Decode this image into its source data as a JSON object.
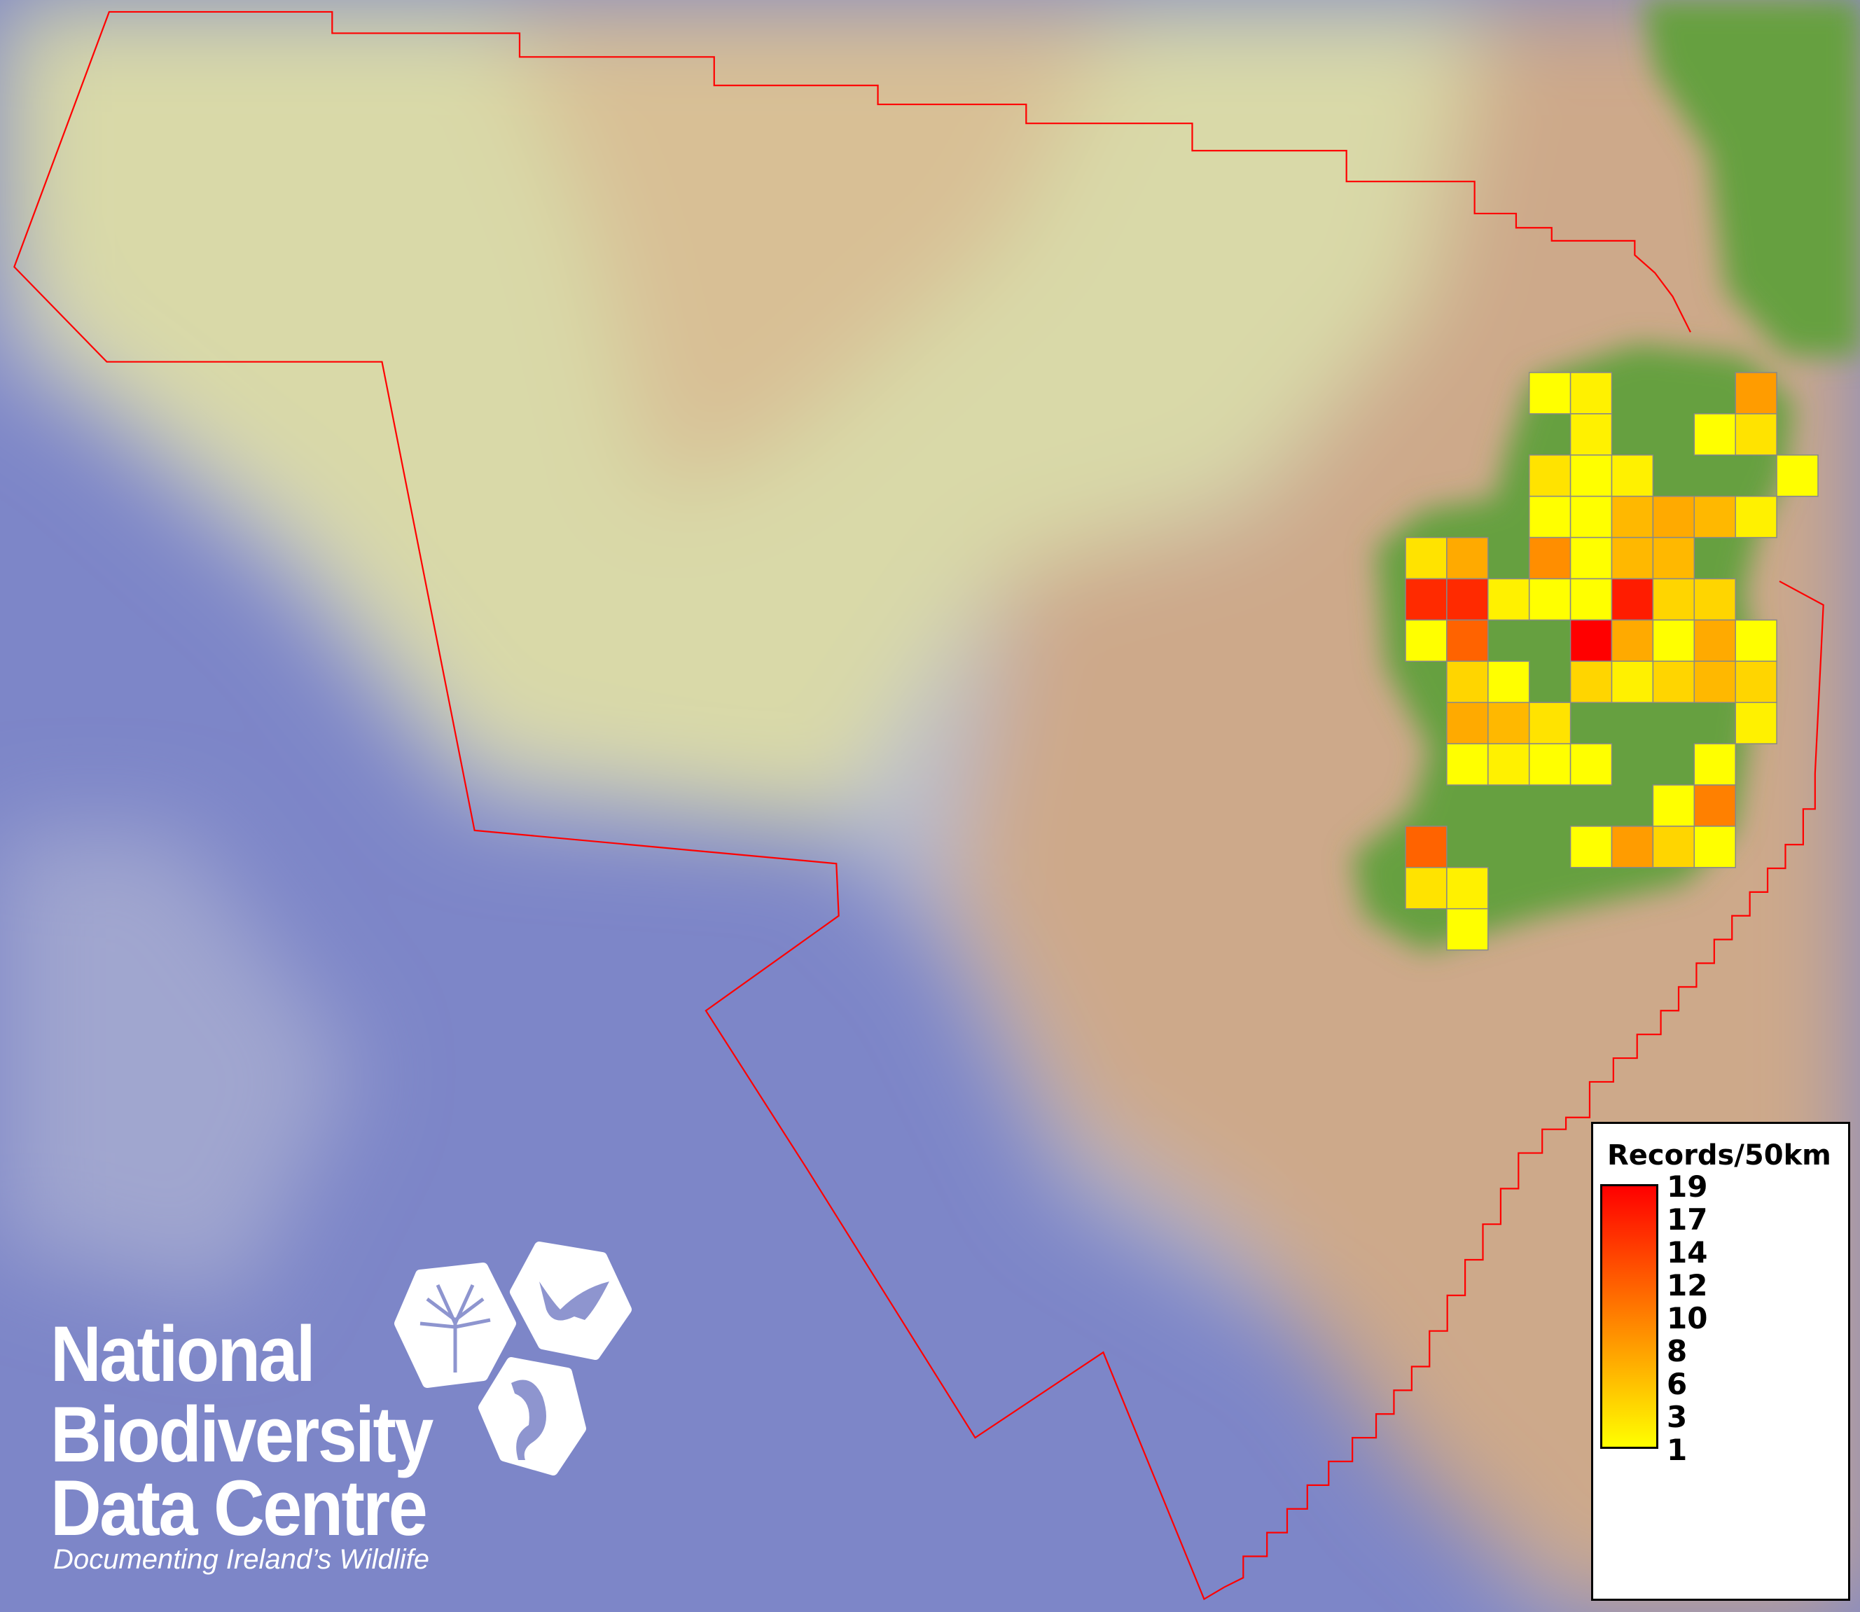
{
  "legend": {
    "title": "Records/50km",
    "ticks": [
      "19",
      "17",
      "14",
      "12",
      "10",
      "8",
      "6",
      "3",
      "1"
    ],
    "scale_min": 1,
    "scale_max": 19,
    "color_low": "#ffff00",
    "color_high": "#ff0000"
  },
  "logo": {
    "line1": "National",
    "line2": "Biodiversity",
    "line3": "Data Centre",
    "tagline": "Documenting Ireland’s Wildlife",
    "icons": [
      "tree-icon",
      "butterfly-icon",
      "seahorse-icon"
    ]
  },
  "colors": {
    "ocean": "#7d86c8",
    "shelf": "#d9d9a8",
    "seabed_tan": "#cda98a",
    "land": "#66a040",
    "boundary": "#ff0000"
  },
  "grid_cells": [
    {
      "row": 0,
      "col": 3,
      "value": 1
    },
    {
      "row": 0,
      "col": 4,
      "value": 2
    },
    {
      "row": 0,
      "col": 8,
      "value": 8
    },
    {
      "row": 1,
      "col": 4,
      "value": 2
    },
    {
      "row": 1,
      "col": 7,
      "value": 1
    },
    {
      "row": 1,
      "col": 8,
      "value": 3
    },
    {
      "row": 2,
      "col": 3,
      "value": 3
    },
    {
      "row": 2,
      "col": 4,
      "value": 1
    },
    {
      "row": 2,
      "col": 5,
      "value": 2
    },
    {
      "row": 2,
      "col": 9,
      "value": 1
    },
    {
      "row": 3,
      "col": 3,
      "value": 1
    },
    {
      "row": 3,
      "col": 4,
      "value": 1
    },
    {
      "row": 3,
      "col": 5,
      "value": 6
    },
    {
      "row": 3,
      "col": 6,
      "value": 7
    },
    {
      "row": 3,
      "col": 7,
      "value": 6
    },
    {
      "row": 3,
      "col": 8,
      "value": 2
    },
    {
      "row": 4,
      "col": 0,
      "value": 3
    },
    {
      "row": 4,
      "col": 1,
      "value": 7
    },
    {
      "row": 4,
      "col": 3,
      "value": 9
    },
    {
      "row": 4,
      "col": 4,
      "value": 1
    },
    {
      "row": 4,
      "col": 5,
      "value": 6
    },
    {
      "row": 4,
      "col": 6,
      "value": 6
    },
    {
      "row": 5,
      "col": 0,
      "value": 16
    },
    {
      "row": 5,
      "col": 1,
      "value": 16
    },
    {
      "row": 5,
      "col": 2,
      "value": 2
    },
    {
      "row": 5,
      "col": 3,
      "value": 1
    },
    {
      "row": 5,
      "col": 4,
      "value": 1
    },
    {
      "row": 5,
      "col": 5,
      "value": 17
    },
    {
      "row": 5,
      "col": 6,
      "value": 4
    },
    {
      "row": 5,
      "col": 7,
      "value": 4
    },
    {
      "row": 6,
      "col": 0,
      "value": 1
    },
    {
      "row": 6,
      "col": 1,
      "value": 12
    },
    {
      "row": 6,
      "col": 4,
      "value": 19
    },
    {
      "row": 6,
      "col": 5,
      "value": 7
    },
    {
      "row": 6,
      "col": 6,
      "value": 1
    },
    {
      "row": 6,
      "col": 7,
      "value": 7
    },
    {
      "row": 6,
      "col": 8,
      "value": 1
    },
    {
      "row": 7,
      "col": 1,
      "value": 4
    },
    {
      "row": 7,
      "col": 2,
      "value": 1
    },
    {
      "row": 7,
      "col": 4,
      "value": 4
    },
    {
      "row": 7,
      "col": 5,
      "value": 2
    },
    {
      "row": 7,
      "col": 6,
      "value": 4
    },
    {
      "row": 7,
      "col": 7,
      "value": 6
    },
    {
      "row": 7,
      "col": 8,
      "value": 4
    },
    {
      "row": 8,
      "col": 1,
      "value": 7
    },
    {
      "row": 8,
      "col": 2,
      "value": 6
    },
    {
      "row": 8,
      "col": 3,
      "value": 3
    },
    {
      "row": 8,
      "col": 8,
      "value": 2
    },
    {
      "row": 9,
      "col": 1,
      "value": 1
    },
    {
      "row": 9,
      "col": 2,
      "value": 2
    },
    {
      "row": 9,
      "col": 3,
      "value": 1
    },
    {
      "row": 9,
      "col": 4,
      "value": 1
    },
    {
      "row": 9,
      "col": 7,
      "value": 1
    },
    {
      "row": 10,
      "col": 6,
      "value": 1
    },
    {
      "row": 10,
      "col": 7,
      "value": 10
    },
    {
      "row": 11,
      "col": 0,
      "value": 12
    },
    {
      "row": 11,
      "col": 4,
      "value": 1
    },
    {
      "row": 11,
      "col": 5,
      "value": 8
    },
    {
      "row": 11,
      "col": 6,
      "value": 4
    },
    {
      "row": 11,
      "col": 7,
      "value": 1
    },
    {
      "row": 12,
      "col": 0,
      "value": 3
    },
    {
      "row": 12,
      "col": 1,
      "value": 2
    },
    {
      "row": 13,
      "col": 1,
      "value": 1
    }
  ]
}
